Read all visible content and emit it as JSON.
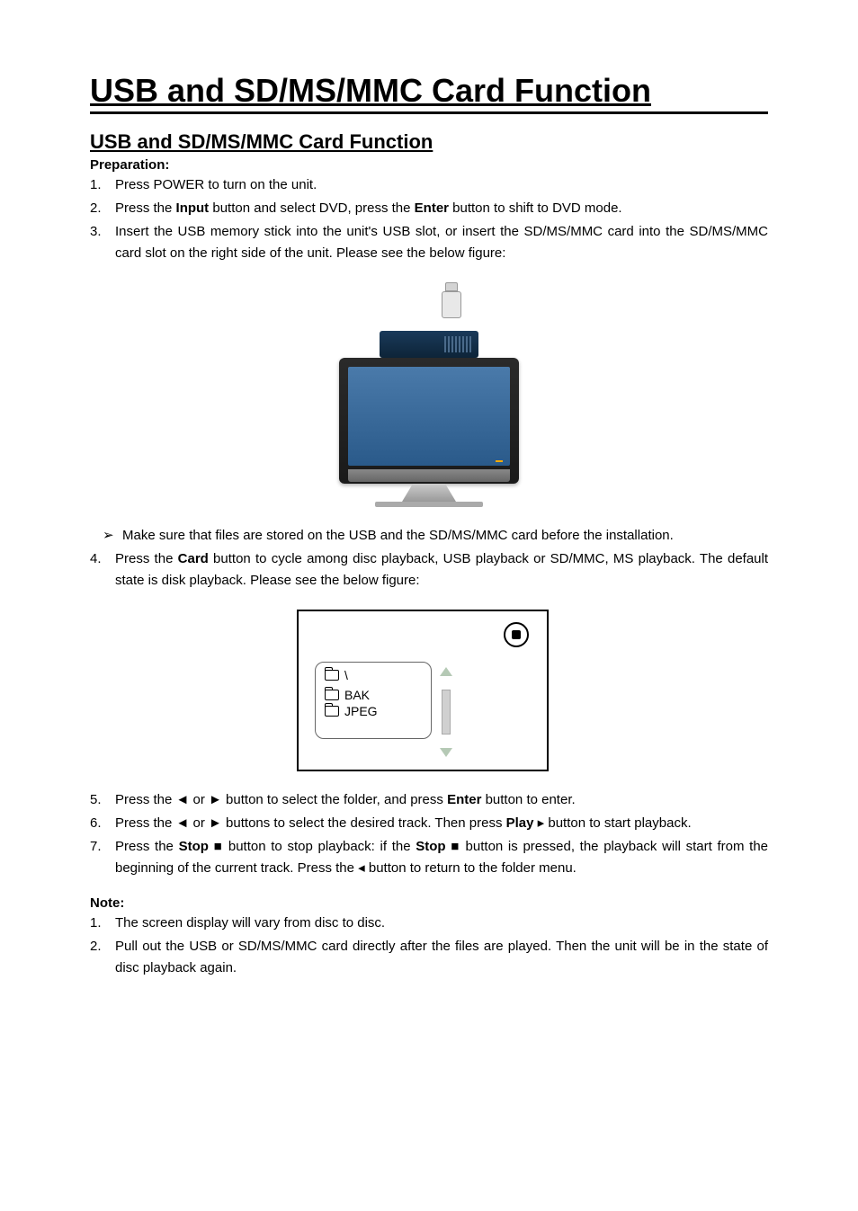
{
  "title": "USB and SD/MS/MMC Card Function",
  "subtitle": "USB and SD/MS/MMC Card Function",
  "preparation_label": "Preparation:",
  "steps": {
    "s1": {
      "num": "1.",
      "text": "Press POWER to turn on the unit."
    },
    "s2": {
      "num": "2.",
      "pre": "Press the ",
      "b1": "Input",
      "mid": " button and select DVD, press the ",
      "b2": "Enter",
      "post": " button to shift to DVD mode."
    },
    "s3": {
      "num": "3.",
      "text": "Insert the USB memory stick into the unit's USB slot, or insert the SD/MS/MMC card into the SD/MS/MMC card slot on the right side of the unit. Please see the below figure:"
    },
    "bullet": {
      "arrow": "➢",
      "text": "Make sure that files are stored on the USB and the SD/MS/MMC card before the installation."
    },
    "s4": {
      "num": "4.",
      "pre": "Press the ",
      "b1": "Card",
      "post": " button to cycle among disc playback, USB playback or SD/MMC, MS playback. The default state is disk playback. Please see the below figure:"
    },
    "s5": {
      "num": "5.",
      "pre": "Press the ◄ or ► button to select the folder, and press ",
      "b1": "Enter",
      "post": " button to enter."
    },
    "s6": {
      "num": "6.",
      "pre": "Press the ◄ or ► buttons to select the desired track. Then press ",
      "b1": "Play",
      "sym": " ▸ ",
      "post": " button to start playback."
    },
    "s7": {
      "num": "7.",
      "pre": "Press the ",
      "b1": "Stop",
      "sym1": " ■ ",
      "mid": " button to stop playback: if the ",
      "b2": "Stop",
      "sym2": " ■ ",
      "mid2": " button is pressed, the playback will start from the beginning of the current track. Press the ",
      "sym3": " ◂ ",
      "post": "button to return to the folder menu."
    }
  },
  "browser": {
    "root": "\\",
    "f1": "BAK",
    "f2": "JPEG"
  },
  "note_label": "Note:",
  "notes": {
    "n1": {
      "num": "1.",
      "text": "The screen display will vary from disc to disc."
    },
    "n2": {
      "num": "2.",
      "text": "Pull out the USB or SD/MS/MMC card directly after the files are played. Then the unit will be in the state of disc playback again."
    }
  },
  "colors": {
    "text": "#000000",
    "bg": "#ffffff",
    "tv_screen": "#4a7aaa",
    "scroll_arrow": "#b5c9b5"
  }
}
